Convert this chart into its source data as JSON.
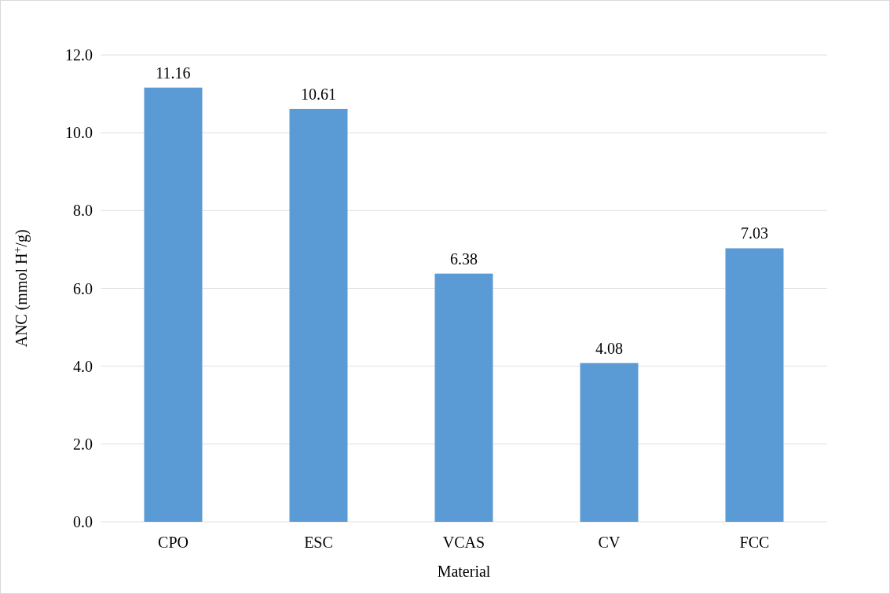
{
  "chart_data": {
    "type": "bar",
    "xlabel": "Material",
    "ylabel": "ANC (mmol H$^{+}$/g)",
    "categories": [
      "CPO",
      "ESC",
      "VCAS",
      "CV",
      "FCC"
    ],
    "values": [
      11.16,
      10.61,
      6.38,
      4.08,
      7.03
    ],
    "color": "#5b9bd5",
    "ylim": [
      0,
      12
    ],
    "yticks": [
      {
        "value": 0,
        "label": "0.0"
      },
      {
        "value": 2,
        "label": "2.0"
      },
      {
        "value": 4,
        "label": "4.0"
      },
      {
        "value": 6,
        "label": "6.0"
      },
      {
        "value": 8,
        "label": "8.0"
      },
      {
        "value": 10,
        "label": "10.0"
      },
      {
        "value": 12,
        "label": "12.0"
      }
    ],
    "grid": "y",
    "data_labels": true
  }
}
